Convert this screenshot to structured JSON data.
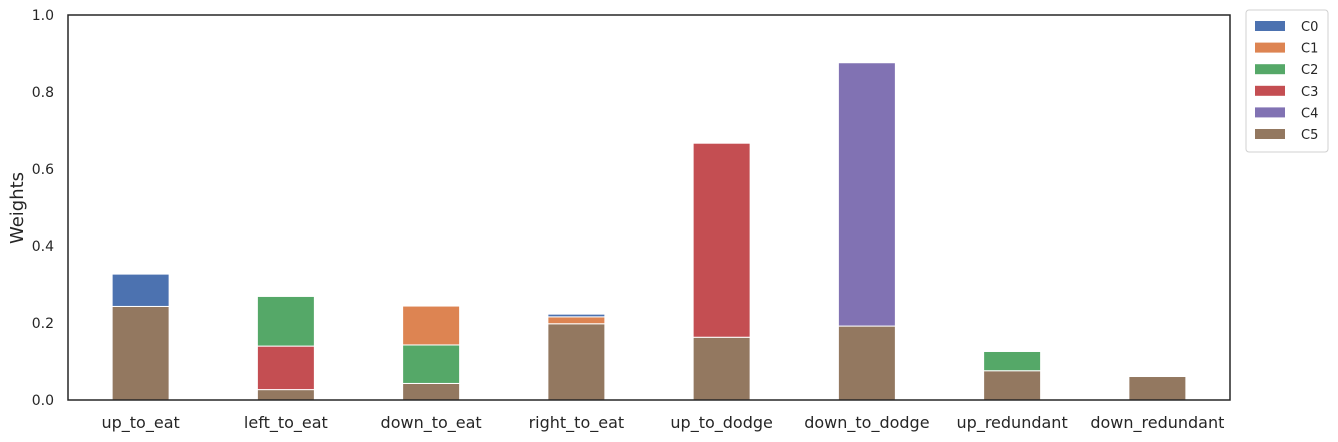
{
  "chart_data": {
    "type": "bar",
    "stacked": true,
    "title": "",
    "xlabel": "",
    "ylabel": "Weights",
    "ylim": [
      0,
      1.0
    ],
    "yticks": [
      "0.0",
      "0.2",
      "0.4",
      "0.6",
      "0.8",
      "1.0"
    ],
    "grid": false,
    "legend_position": "outside-top-right",
    "categories": [
      "up_to_eat",
      "left_to_eat",
      "down_to_eat",
      "right_to_eat",
      "up_to_dodge",
      "down_to_dodge",
      "up_redundant",
      "down_redundant"
    ],
    "series": [
      {
        "name": "C0",
        "color": "#4c72b0",
        "values": [
          0.084,
          0,
          0,
          0.007,
          0,
          0,
          0,
          0
        ]
      },
      {
        "name": "C1",
        "color": "#dd8452",
        "values": [
          0,
          0,
          0.101,
          0.018,
          0,
          0,
          0,
          0
        ]
      },
      {
        "name": "C2",
        "color": "#55a868",
        "values": [
          0,
          0.129,
          0.1,
          0,
          0,
          0,
          0.05,
          0
        ]
      },
      {
        "name": "C3",
        "color": "#c44e52",
        "values": [
          0,
          0.113,
          0,
          0,
          0.504,
          0,
          0,
          0
        ]
      },
      {
        "name": "C4",
        "color": "#8172b3",
        "values": [
          0,
          0,
          0,
          0,
          0,
          0.684,
          0,
          0
        ]
      },
      {
        "name": "C5",
        "color": "#937860",
        "values": [
          0.243,
          0.027,
          0.043,
          0.198,
          0.163,
          0.192,
          0.076,
          0.061
        ]
      }
    ],
    "stack_order": [
      "C5",
      "C4",
      "C3",
      "C2",
      "C1",
      "C0"
    ]
  }
}
